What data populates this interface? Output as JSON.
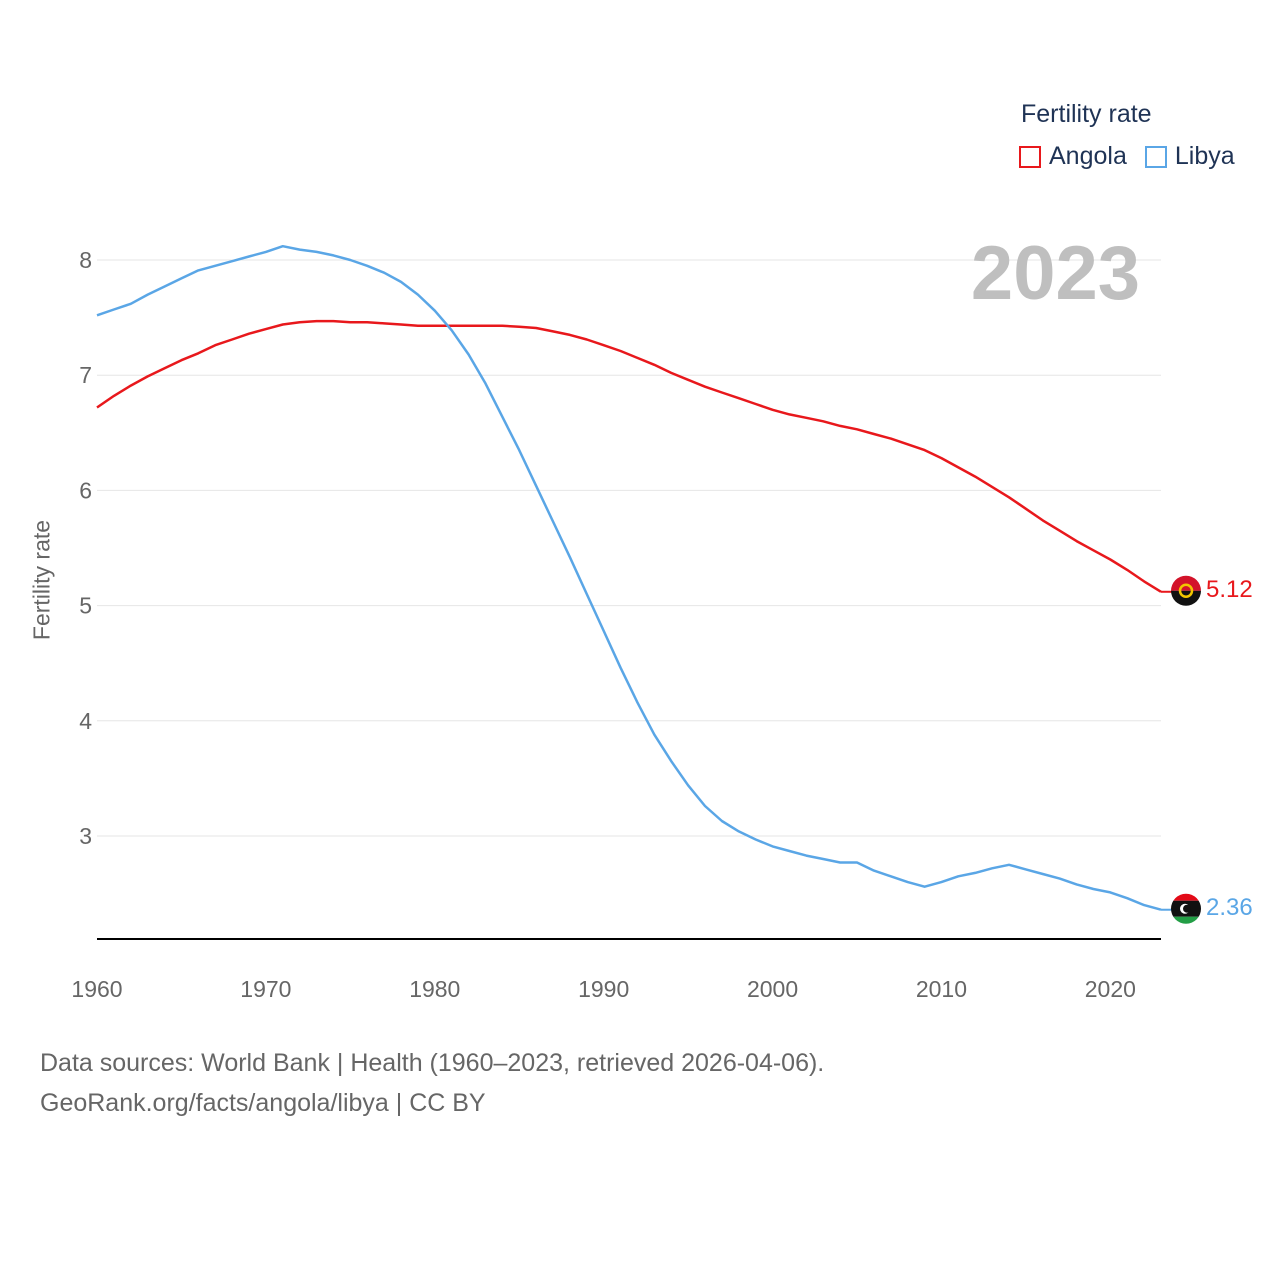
{
  "legend": {
    "title": "Fertility rate",
    "items": [
      {
        "label": "Angola",
        "color": "#e8181c"
      },
      {
        "label": "Libya",
        "color": "#5aa6e6"
      }
    ]
  },
  "year_label": "2023",
  "footer": {
    "line1": "Data sources: World Bank | Health (1960–2023, retrieved 2026-04-06).",
    "line2": "GeoRank.org/facts/angola/libya | CC BY"
  },
  "chart_data": {
    "type": "line",
    "title": "Fertility rate",
    "xlabel": "",
    "ylabel": "Fertility rate",
    "xlim": [
      1960,
      2023
    ],
    "ylim": [
      2.1,
      8.5
    ],
    "x_ticks": [
      1960,
      1970,
      1980,
      1990,
      2000,
      2010,
      2020
    ],
    "y_ticks": [
      3,
      4,
      5,
      6,
      7,
      8
    ],
    "grid": true,
    "legend_position": "top-right",
    "x": [
      1960,
      1961,
      1962,
      1963,
      1964,
      1965,
      1966,
      1967,
      1968,
      1969,
      1970,
      1971,
      1972,
      1973,
      1974,
      1975,
      1976,
      1977,
      1978,
      1979,
      1980,
      1981,
      1982,
      1983,
      1984,
      1985,
      1986,
      1987,
      1988,
      1989,
      1990,
      1991,
      1992,
      1993,
      1994,
      1995,
      1996,
      1997,
      1998,
      1999,
      2000,
      2001,
      2002,
      2003,
      2004,
      2005,
      2006,
      2007,
      2008,
      2009,
      2010,
      2011,
      2012,
      2013,
      2014,
      2015,
      2016,
      2017,
      2018,
      2019,
      2020,
      2021,
      2022,
      2023
    ],
    "series": [
      {
        "name": "Angola",
        "color": "#e8181c",
        "end_label": "5.12",
        "values": [
          6.72,
          6.82,
          6.91,
          6.99,
          7.06,
          7.13,
          7.19,
          7.26,
          7.31,
          7.36,
          7.4,
          7.44,
          7.46,
          7.47,
          7.47,
          7.46,
          7.46,
          7.45,
          7.44,
          7.43,
          7.43,
          7.43,
          7.43,
          7.43,
          7.43,
          7.42,
          7.41,
          7.38,
          7.35,
          7.31,
          7.26,
          7.21,
          7.15,
          7.09,
          7.02,
          6.96,
          6.9,
          6.85,
          6.8,
          6.75,
          6.7,
          6.66,
          6.63,
          6.6,
          6.56,
          6.53,
          6.49,
          6.45,
          6.4,
          6.35,
          6.28,
          6.2,
          6.12,
          6.03,
          5.94,
          5.84,
          5.74,
          5.65,
          5.56,
          5.48,
          5.4,
          5.31,
          5.21,
          5.12
        ]
      },
      {
        "name": "Libya",
        "color": "#5aa6e6",
        "end_label": "2.36",
        "values": [
          7.52,
          7.57,
          7.62,
          7.7,
          7.77,
          7.84,
          7.91,
          7.95,
          7.99,
          8.03,
          8.07,
          8.12,
          8.09,
          8.07,
          8.04,
          8.0,
          7.95,
          7.89,
          7.81,
          7.7,
          7.56,
          7.39,
          7.18,
          6.93,
          6.64,
          6.35,
          6.04,
          5.73,
          5.42,
          5.1,
          4.78,
          4.46,
          4.16,
          3.88,
          3.65,
          3.44,
          3.26,
          3.13,
          3.04,
          2.97,
          2.91,
          2.87,
          2.83,
          2.8,
          2.77,
          2.77,
          2.7,
          2.65,
          2.6,
          2.56,
          2.6,
          2.65,
          2.68,
          2.72,
          2.75,
          2.71,
          2.67,
          2.63,
          2.58,
          2.54,
          2.51,
          2.46,
          2.4,
          2.36
        ]
      }
    ]
  }
}
